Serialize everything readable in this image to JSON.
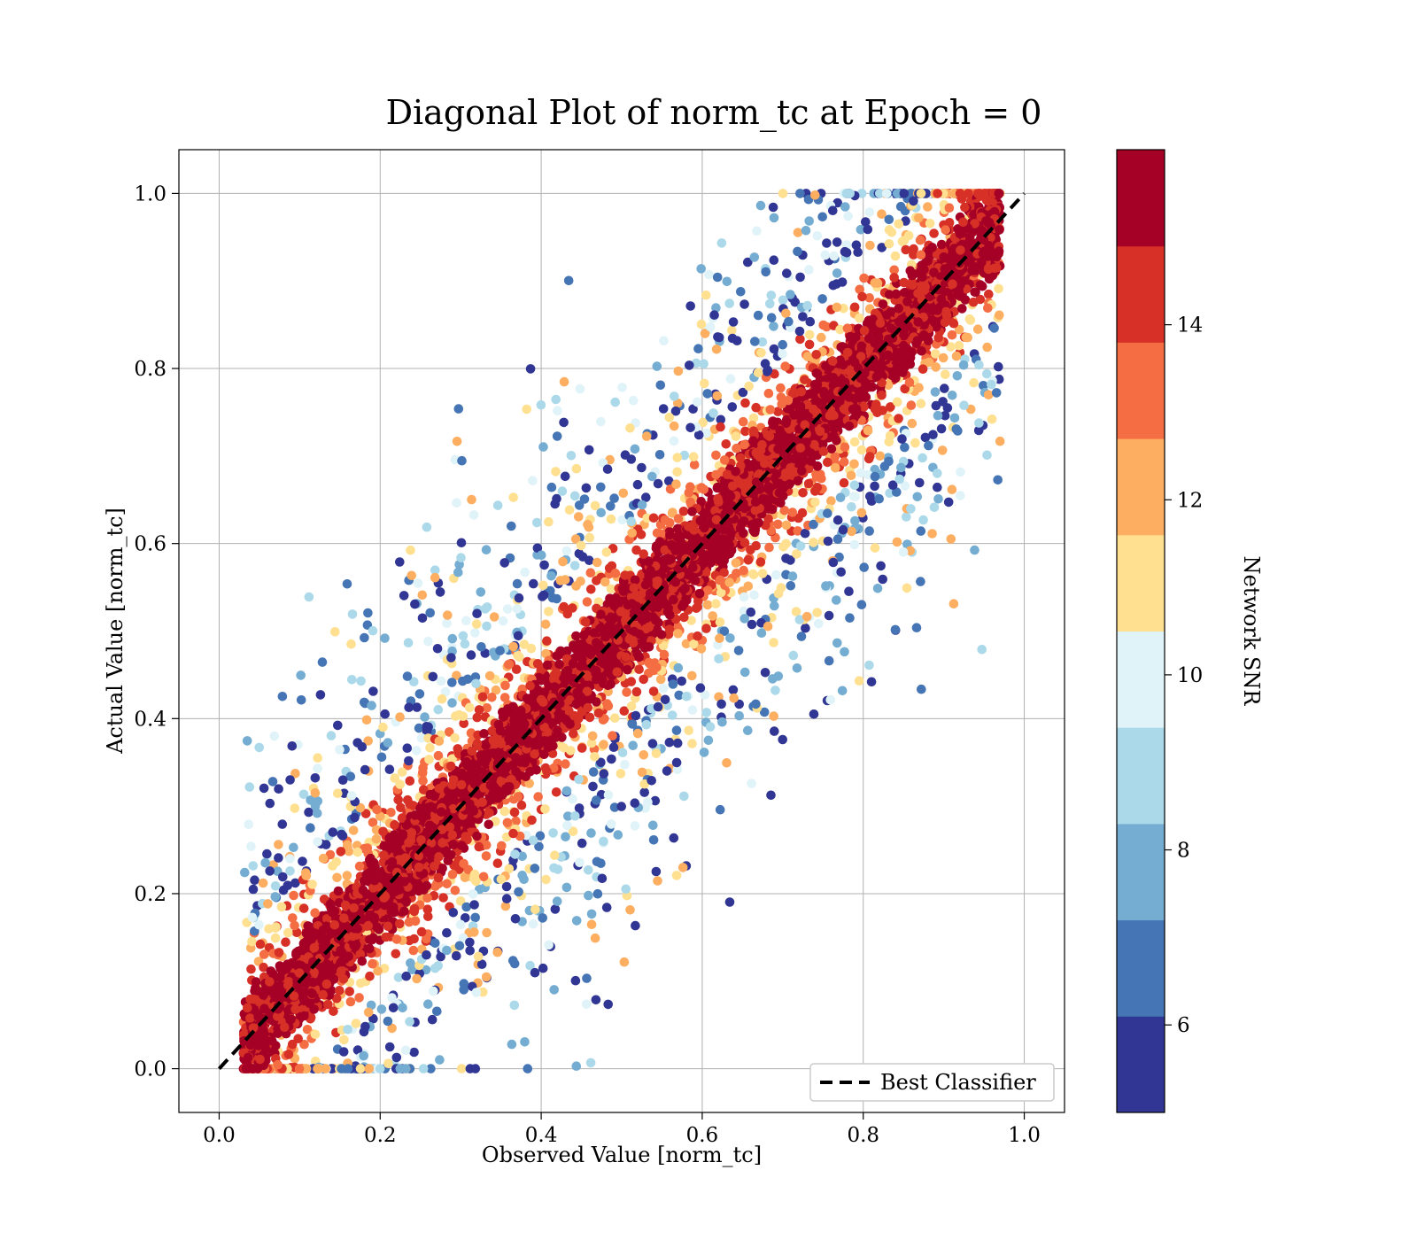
{
  "chart_data": {
    "type": "scatter",
    "title": "Diagonal Plot of norm_tc at Epoch = 0",
    "xlabel": "Observed Value [norm_tc]",
    "ylabel": "Actual Value [norm_tc]",
    "xlim": [
      -0.05,
      1.05
    ],
    "ylim": [
      -0.05,
      1.05
    ],
    "xticks": [
      "0.0",
      "0.2",
      "0.4",
      "0.6",
      "0.8",
      "1.0"
    ],
    "yticks": [
      "0.0",
      "0.2",
      "0.4",
      "0.6",
      "0.8",
      "1.0"
    ],
    "grid": true,
    "legend": {
      "position": "lower-right",
      "entries": [
        "Best Classifier"
      ]
    },
    "reference_line": {
      "name": "Best Classifier",
      "style": "dashed",
      "color": "#000000",
      "x": [
        0,
        1
      ],
      "y": [
        0,
        1
      ]
    },
    "point_cloud": {
      "description": "Dense band of high-SNR points along y = x; lower-SNR points scattered widely above and below the diagonal",
      "x_range": [
        0.03,
        0.97
      ],
      "y_range": [
        0.0,
        1.0
      ],
      "high_snr_band_halfwidth": 0.07
    },
    "colorbar": {
      "label": "Network SNR",
      "range": [
        5,
        16
      ],
      "ticks": [
        "6",
        "8",
        "10",
        "12",
        "14"
      ],
      "colors": [
        "#313695",
        "#4575b4",
        "#74add1",
        "#abd9e9",
        "#e0f3f8",
        "#fee090",
        "#fdae61",
        "#f46d43",
        "#d73027",
        "#a50026"
      ]
    }
  }
}
